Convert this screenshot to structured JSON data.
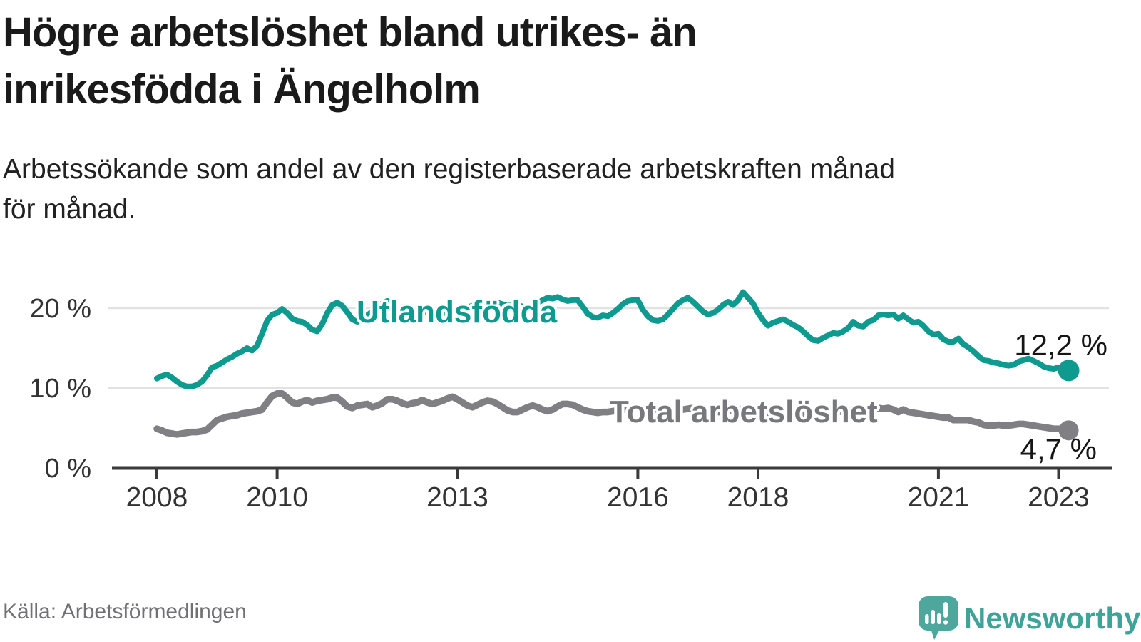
{
  "header": {
    "title_line1": "Högre arbetslöshet bland utrikes- än",
    "title_line2": "inrikesfödda i Ängelholm",
    "subtitle_line1": "Arbetssökande som andel av den registerbaserade arbetskraften månad",
    "subtitle_line2": "för månad."
  },
  "colors": {
    "foreign_born_line": "#0f9a90",
    "total_line": "#808084",
    "total_label_text": "#77787c",
    "axis": "#3a3a3a",
    "grid": "#e2e2e2",
    "tick_text": "#333333",
    "end_label_text": "#161616",
    "title_text": "#1a1a1a",
    "source_text": "#707075",
    "brand_teal": "#4ea79d",
    "brand_wordmark": "#3fa39a"
  },
  "chart_data": {
    "type": "line",
    "x_start": "2008-01",
    "x_end": "2023-03",
    "points_per_year": 12,
    "x_tick_years": [
      2008,
      2010,
      2013,
      2016,
      2018,
      2021,
      2023
    ],
    "y_ticks": [
      {
        "value": 0,
        "label": "0 %"
      },
      {
        "value": 10,
        "label": "10 %"
      },
      {
        "value": 20,
        "label": "20 %"
      }
    ],
    "ylim": [
      0,
      24
    ],
    "grid": "horizontal",
    "legend_position": "inline-labels",
    "series": [
      {
        "name": "Utlandsfödda",
        "end_label": "12,2 %",
        "end_value": 12.2,
        "values": [
          11.2,
          11.5,
          11.7,
          11.3,
          10.8,
          10.4,
          10.2,
          10.2,
          10.4,
          10.8,
          11.6,
          12.6,
          12.8,
          13.2,
          13.6,
          13.9,
          14.3,
          14.6,
          15.0,
          14.7,
          15.3,
          16.8,
          18.4,
          19.2,
          19.4,
          19.9,
          19.4,
          18.7,
          18.4,
          18.3,
          17.9,
          17.3,
          17.1,
          18.0,
          19.4,
          20.4,
          20.7,
          20.3,
          19.5,
          18.6,
          18.3,
          18.6,
          19.1,
          19.6,
          20.1,
          20.6,
          20.9,
          20.5,
          20.0,
          19.5,
          19.1,
          18.9,
          19.1,
          19.4,
          19.6,
          19.3,
          19.0,
          19.3,
          19.7,
          20.0,
          20.1,
          20.3,
          20.1,
          20.3,
          20.2,
          20.0,
          20.3,
          20.5,
          20.7,
          20.5,
          20.3,
          20.5,
          20.4,
          20.2,
          20.0,
          20.3,
          20.7,
          21.0,
          21.3,
          21.2,
          21.4,
          21.1,
          20.9,
          21.0,
          21.0,
          20.2,
          19.3,
          18.9,
          18.8,
          19.1,
          19.0,
          19.4,
          19.9,
          20.5,
          20.9,
          21.0,
          21.0,
          19.8,
          19.0,
          18.5,
          18.4,
          18.6,
          19.2,
          19.9,
          20.6,
          21.0,
          21.3,
          20.8,
          20.2,
          19.6,
          19.2,
          19.4,
          19.8,
          20.4,
          20.8,
          20.4,
          21.0,
          22.0,
          21.3,
          20.6,
          19.4,
          18.5,
          17.8,
          18.2,
          18.4,
          18.6,
          18.3,
          17.9,
          17.6,
          17.1,
          16.5,
          16.0,
          15.9,
          16.3,
          16.6,
          16.9,
          16.8,
          17.1,
          17.5,
          18.3,
          17.8,
          17.7,
          18.3,
          18.5,
          19.1,
          19.2,
          19.1,
          19.2,
          18.7,
          19.1,
          18.6,
          18.2,
          18.3,
          17.8,
          17.1,
          16.7,
          16.8,
          16.1,
          15.8,
          15.8,
          16.2,
          15.5,
          15.1,
          14.6,
          14.0,
          13.5,
          13.4,
          13.2,
          13.1,
          12.9,
          12.8,
          12.9,
          13.3,
          13.5,
          13.7,
          13.4,
          13.1,
          12.7,
          12.5,
          12.4,
          12.6,
          12.4,
          12.2
        ]
      },
      {
        "name": "Total arbetslöshet",
        "end_label": "4,7 %",
        "end_value": 4.7,
        "values": [
          4.9,
          4.7,
          4.4,
          4.3,
          4.2,
          4.3,
          4.4,
          4.5,
          4.5,
          4.6,
          4.8,
          5.4,
          6.0,
          6.2,
          6.4,
          6.5,
          6.6,
          6.8,
          6.9,
          7.0,
          7.1,
          7.3,
          8.2,
          9.0,
          9.3,
          9.3,
          8.8,
          8.2,
          8.0,
          8.3,
          8.5,
          8.2,
          8.4,
          8.5,
          8.6,
          8.8,
          8.8,
          8.3,
          7.7,
          7.5,
          7.8,
          7.9,
          8.0,
          7.6,
          7.8,
          8.1,
          8.6,
          8.6,
          8.4,
          8.1,
          7.9,
          8.1,
          8.2,
          8.5,
          8.2,
          8.0,
          8.2,
          8.4,
          8.7,
          8.9,
          8.6,
          8.2,
          7.8,
          7.6,
          7.9,
          8.2,
          8.4,
          8.3,
          8.0,
          7.6,
          7.2,
          7.0,
          7.0,
          7.3,
          7.6,
          7.8,
          7.6,
          7.3,
          7.1,
          7.3,
          7.7,
          8.0,
          8.0,
          7.9,
          7.6,
          7.3,
          7.1,
          7.0,
          6.9,
          7.0,
          7.0,
          7.1,
          7.2,
          7.3,
          7.4,
          7.5,
          7.5,
          7.4,
          7.3,
          7.2,
          7.1,
          7.0,
          7.1,
          7.2,
          7.3,
          7.3,
          7.4,
          7.5,
          7.4,
          7.3,
          7.2,
          7.1,
          7.0,
          7.0,
          7.1,
          7.2,
          7.3,
          7.4,
          7.4,
          7.3,
          7.2,
          7.0,
          6.8,
          6.7,
          6.6,
          6.6,
          6.7,
          6.8,
          6.8,
          6.7,
          6.6,
          6.6,
          6.7,
          6.8,
          6.9,
          7.0,
          7.0,
          7.1,
          7.2,
          7.3,
          7.3,
          7.2,
          7.3,
          7.4,
          7.5,
          7.4,
          7.5,
          7.3,
          7.0,
          7.3,
          7.0,
          6.9,
          6.8,
          6.7,
          6.6,
          6.5,
          6.4,
          6.3,
          6.3,
          6.0,
          6.0,
          6.0,
          6.0,
          5.8,
          5.7,
          5.4,
          5.3,
          5.3,
          5.4,
          5.3,
          5.3,
          5.4,
          5.5,
          5.5,
          5.4,
          5.3,
          5.2,
          5.1,
          5.0,
          4.9,
          4.9,
          4.8,
          4.7
        ]
      }
    ]
  },
  "footer": {
    "source": "Källa: Arbetsförmedlingen",
    "brand": "Newsworthy"
  }
}
